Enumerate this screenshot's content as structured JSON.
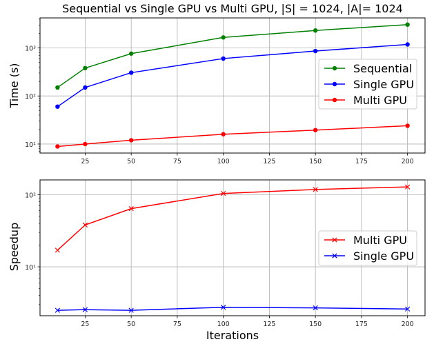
{
  "chart_data": [
    {
      "type": "line",
      "title": "Sequential vs Single GPU vs Multi GPU, |S| = 1024, |A|= 1024",
      "xlabel": "",
      "ylabel": "Time (s)",
      "yscale": "log",
      "x": [
        10,
        25,
        50,
        100,
        150,
        200
      ],
      "xticks": [
        "25",
        "50",
        "75",
        "100",
        "125",
        "150",
        "175",
        "200"
      ],
      "yticks": [
        "10¹",
        "10²",
        "10³"
      ],
      "grid": true,
      "legend_position": "center-right",
      "series": [
        {
          "name": "Sequential",
          "color": "#008000",
          "marker": "circle",
          "values": [
            150,
            380,
            760,
            1650,
            2300,
            3050
          ]
        },
        {
          "name": "Single GPU",
          "color": "#0000ff",
          "marker": "circle",
          "values": [
            60,
            150,
            305,
            600,
            860,
            1180
          ]
        },
        {
          "name": "Multi GPU",
          "color": "#ff0000",
          "marker": "circle",
          "values": [
            8.9,
            10,
            12,
            16,
            19.5,
            24
          ]
        }
      ]
    },
    {
      "type": "line",
      "title": "",
      "xlabel": "Iterations",
      "ylabel": "Speedup",
      "yscale": "log",
      "x": [
        10,
        25,
        50,
        100,
        150,
        200
      ],
      "xticks": [
        "25",
        "50",
        "75",
        "100",
        "125",
        "150",
        "175",
        "200"
      ],
      "yticks": [
        "10¹",
        "10²"
      ],
      "grid": true,
      "legend_position": "center-right",
      "series": [
        {
          "name": "Multi GPU",
          "color": "#ff0000",
          "marker": "x",
          "values": [
            17,
            38,
            64,
            104,
            118,
            128
          ]
        },
        {
          "name": "Single GPU",
          "color": "#0000ff",
          "marker": "x",
          "values": [
            2.5,
            2.55,
            2.5,
            2.75,
            2.7,
            2.6
          ]
        }
      ]
    }
  ]
}
